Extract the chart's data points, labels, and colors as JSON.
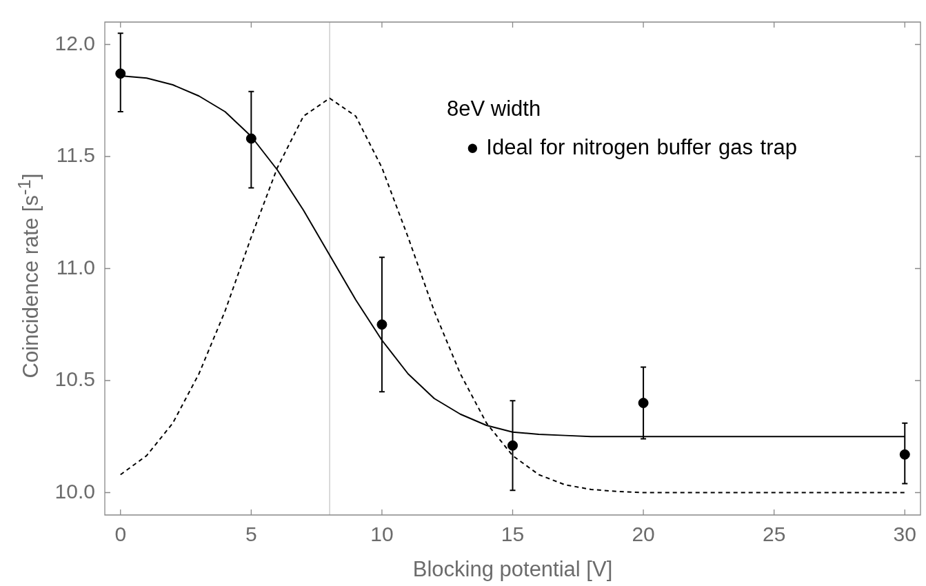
{
  "chart_data": {
    "type": "scatter",
    "xlabel": "Blocking potential [V]",
    "ylabel": "Coincidence rate [s$^{-1}$]",
    "xlim": [
      -0.6,
      30.6
    ],
    "xticks": [
      0,
      5,
      10,
      15,
      20,
      25,
      30
    ],
    "ylim": [
      9.9,
      12.1
    ],
    "yticks": [
      {
        "value": 10,
        "label": "10.0"
      },
      10.5,
      {
        "value": 11,
        "label": "11.0"
      },
      11.5,
      {
        "value": 12,
        "label": "12.0"
      }
    ],
    "grid": false,
    "legend": false,
    "marker": "circle",
    "ref_lines": [
      {
        "axis": "x",
        "value": 8,
        "label": null,
        "color": "#c0c0c0"
      }
    ],
    "annotations": [
      "8eV width",
      "● Ideal for nitrogen buffer gas trap"
    ],
    "series": [
      {
        "type": "scatter",
        "color": "#000000",
        "x": [
          0,
          5,
          10,
          15,
          20,
          30
        ],
        "values": [
          11.87,
          11.58,
          10.75,
          10.21,
          10.4,
          10.17
        ],
        "errors": [
          [
            11.7,
            12.05
          ],
          [
            11.36,
            11.79
          ],
          [
            10.45,
            11.05
          ],
          [
            10.01,
            10.41
          ],
          [
            10.24,
            10.56
          ],
          [
            10.04,
            10.31
          ]
        ]
      },
      {
        "type": "line",
        "color": "#000000",
        "line_style": "solid",
        "marker": "none",
        "x": [
          0,
          1,
          2,
          3,
          4,
          5,
          6,
          7,
          8,
          9,
          10,
          11,
          12,
          13,
          14,
          15,
          16,
          17,
          18,
          20,
          25,
          30
        ],
        "values": [
          11.86,
          11.85,
          11.82,
          11.77,
          11.7,
          11.59,
          11.44,
          11.26,
          11.06,
          10.86,
          10.68,
          10.53,
          10.42,
          10.35,
          10.3,
          10.27,
          10.26,
          10.255,
          10.25,
          10.25,
          10.25,
          10.25
        ]
      },
      {
        "type": "line",
        "color": "#000000",
        "line_style": "dashed",
        "marker": "none",
        "x": [
          0,
          1,
          2,
          3,
          4,
          5,
          6,
          7,
          8,
          9,
          10,
          11,
          12,
          13,
          14,
          15,
          16,
          17,
          18,
          19,
          20,
          25,
          30
        ],
        "values": [
          10.08,
          10.165,
          10.31,
          10.53,
          10.81,
          11.14,
          11.45,
          11.68,
          11.76,
          11.68,
          11.45,
          11.14,
          10.81,
          10.53,
          10.31,
          10.165,
          10.08,
          10.035,
          10.014,
          10.005,
          10.0,
          10.0,
          10.0
        ]
      }
    ]
  }
}
